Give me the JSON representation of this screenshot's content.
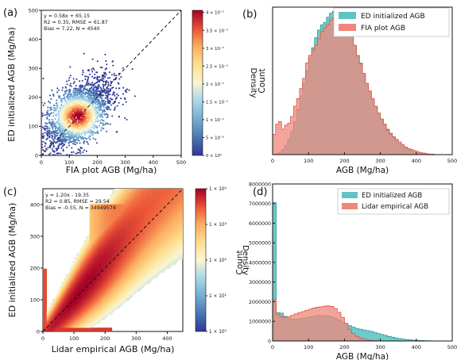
{
  "chart_data": [
    {
      "panel": "(a)",
      "type": "scatter",
      "xlabel": "FIA plot AGB (Mg/ha)",
      "ylabel": "ED initialized AGB (Mg/ha)",
      "xlim": [
        0,
        500
      ],
      "ylim": [
        0,
        500
      ],
      "xticks": [
        0,
        100,
        200,
        300,
        400,
        500
      ],
      "yticks": [
        0,
        100,
        200,
        300,
        400,
        500
      ],
      "stats": [
        "y = 0.58x + 65.15",
        "R2 = 0.35, RMSE = 61.87",
        "Bias = 7.22, N = 4540"
      ],
      "one_to_one_line": true,
      "density_center": [
        130,
        135
      ],
      "colorbar": {
        "label": "Density",
        "scale": "linear",
        "ticks": [
          "0 × 10⁰",
          "5 × 10⁻⁶",
          "1 × 10⁻⁵",
          "1.5 × 10⁻⁵",
          "2 × 10⁻⁵",
          "2.5 × 10⁻⁵",
          "3 × 10⁻⁵",
          "3.5 × 10⁻⁵",
          "4 × 10⁻⁵"
        ]
      }
    },
    {
      "panel": "(b)",
      "type": "histogram",
      "xlabel": "AGB (Mg/ha)",
      "ylabel": "Count",
      "xlim": [
        0,
        500
      ],
      "ylim": [
        0,
        290
      ],
      "xticks": [
        0,
        100,
        200,
        300,
        400,
        500
      ],
      "legend": "top-right",
      "series": [
        {
          "name": "ED initialized AGB",
          "color": "#5fc4c4",
          "bin_edges": [
            0,
            500
          ],
          "counts": [
            0,
            2,
            5,
            10,
            18,
            30,
            45,
            65,
            90,
            115,
            140,
            165,
            190,
            210,
            230,
            245,
            255,
            260,
            270,
            278,
            282,
            285,
            280,
            272,
            262,
            250,
            232,
            215,
            195,
            180,
            160,
            140,
            125,
            108,
            95,
            82,
            70,
            60,
            50,
            42,
            35,
            28,
            22,
            17,
            13,
            10,
            7,
            5,
            3,
            2,
            1,
            1,
            0,
            0,
            0,
            0,
            0,
            0,
            0,
            0
          ]
        },
        {
          "name": "FIA plot AGB",
          "color": "#f0877a",
          "bin_edges": [
            0,
            500
          ],
          "counts": [
            40,
            60,
            65,
            50,
            58,
            62,
            75,
            95,
            110,
            130,
            150,
            180,
            195,
            205,
            215,
            228,
            242,
            250,
            256,
            265,
            270,
            276,
            285,
            291,
            284,
            265,
            240,
            215,
            195,
            178,
            160,
            140,
            125,
            110,
            95,
            82,
            70,
            60,
            48,
            40,
            35,
            30,
            25,
            20,
            15,
            12,
            10,
            8,
            6,
            4,
            3,
            2,
            1,
            1,
            0,
            0,
            0,
            0,
            0,
            0
          ]
        }
      ]
    },
    {
      "panel": "(c)",
      "type": "heatmap",
      "xlabel": "Lidar empirical AGB (Mg/ha)",
      "ylabel": "ED initialized AGB (Mg/ha)",
      "xlim": [
        0,
        450
      ],
      "ylim": [
        0,
        450
      ],
      "xticks": [
        0,
        100,
        200,
        300,
        400
      ],
      "yticks": [
        0,
        100,
        200,
        300,
        400
      ],
      "stats": [
        "y = 1.20x - 19.35",
        "R2 = 0.85, RMSE = 29.54",
        "Bias = -0.55, N = 34949574"
      ],
      "one_to_one_line": true,
      "colorbar": {
        "label": "Density",
        "scale": "log",
        "ticks": [
          "1 × 10⁰",
          "1 × 10¹",
          "1 × 10²",
          "1 × 10³",
          "1 × 10⁴"
        ]
      }
    },
    {
      "panel": "(d)",
      "type": "histogram",
      "xlabel": "AGB (Mg/ha)",
      "ylabel": "Count",
      "xlim": [
        0,
        500
      ],
      "ylim": [
        0,
        8000000
      ],
      "xticks": [
        0,
        100,
        200,
        300,
        400,
        500
      ],
      "yticks": [
        0,
        1000000,
        2000000,
        3000000,
        4000000,
        5000000,
        6000000,
        7000000,
        8000000
      ],
      "legend": "top-right",
      "series": [
        {
          "name": "ED initialized AGB",
          "color": "#5fc4c4",
          "bin_edges": [
            0,
            500
          ],
          "counts": [
            7050000,
            1450000,
            1420000,
            1250000,
            1150000,
            1120000,
            1120000,
            1130000,
            1160000,
            1190000,
            1230000,
            1260000,
            1290000,
            1300000,
            1290000,
            1270000,
            1230000,
            1160000,
            1080000,
            980000,
            870000,
            780000,
            700000,
            640000,
            600000,
            560000,
            530000,
            490000,
            440000,
            380000,
            330000,
            280000,
            230000,
            190000,
            150000,
            120000,
            95000,
            72000,
            55000,
            40000,
            30000,
            22000,
            15000,
            10000,
            6000,
            4000,
            2000,
            1000,
            500,
            200
          ]
        },
        {
          "name": "Lidar empirical AGB",
          "color": "#f0877a",
          "bin_edges": [
            0,
            500
          ],
          "counts": [
            2100000,
            1350000,
            1230000,
            1210000,
            1230000,
            1300000,
            1380000,
            1440000,
            1500000,
            1560000,
            1620000,
            1680000,
            1720000,
            1740000,
            1770000,
            1790000,
            1760000,
            1650000,
            1460000,
            1200000,
            900000,
            600000,
            380000,
            240000,
            150000,
            90000,
            55000,
            32000,
            18000,
            10000,
            6000,
            3000,
            1500,
            800,
            400,
            200,
            100,
            50,
            20,
            10,
            5,
            0,
            0,
            0,
            0,
            0,
            0,
            0,
            0,
            0
          ]
        }
      ]
    }
  ]
}
